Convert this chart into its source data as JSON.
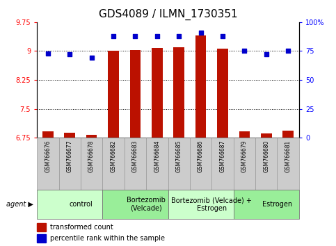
{
  "title": "GDS4089 / ILMN_1730351",
  "samples": [
    "GSM766676",
    "GSM766677",
    "GSM766678",
    "GSM766682",
    "GSM766683",
    "GSM766684",
    "GSM766685",
    "GSM766686",
    "GSM766687",
    "GSM766679",
    "GSM766680",
    "GSM766681"
  ],
  "transformed_count": [
    6.92,
    6.88,
    6.83,
    9.0,
    9.02,
    9.08,
    9.09,
    9.4,
    9.06,
    6.92,
    6.87,
    6.93
  ],
  "percentile_rank": [
    73,
    72,
    69,
    88,
    88,
    88,
    88,
    91,
    88,
    75,
    72,
    75
  ],
  "groups": [
    {
      "label": "control",
      "start": 0,
      "end": 3,
      "color": "#ccffcc"
    },
    {
      "label": "Bortezomib\n(Velcade)",
      "start": 3,
      "end": 6,
      "color": "#99ee99"
    },
    {
      "label": "Bortezomib (Velcade) +\nEstrogen",
      "start": 6,
      "end": 9,
      "color": "#ccffcc"
    },
    {
      "label": "Estrogen",
      "start": 9,
      "end": 12,
      "color": "#99ee99"
    }
  ],
  "ylim_left": [
    6.75,
    9.75
  ],
  "ylim_right": [
    0,
    100
  ],
  "yticks_left": [
    6.75,
    7.5,
    8.25,
    9.0,
    9.75
  ],
  "ytick_labels_left": [
    "6.75",
    "7.5",
    "8.25",
    "9",
    "9.75"
  ],
  "yticks_right": [
    0,
    25,
    50,
    75,
    100
  ],
  "ytick_labels_right": [
    "0",
    "25",
    "50",
    "75",
    "100%"
  ],
  "hlines": [
    7.5,
    8.25,
    9.0
  ],
  "bar_color": "#bb1100",
  "dot_color": "#0000cc",
  "bar_bottom": 6.75,
  "legend_bar_label": "transformed count",
  "legend_dot_label": "percentile rank within the sample",
  "bar_width": 0.5,
  "group_label_fontsize": 7,
  "sample_label_fontsize": 5.5,
  "tick_label_fontsize": 7,
  "title_fontsize": 11,
  "sample_cell_color": "#cccccc",
  "agent_label": "agent"
}
